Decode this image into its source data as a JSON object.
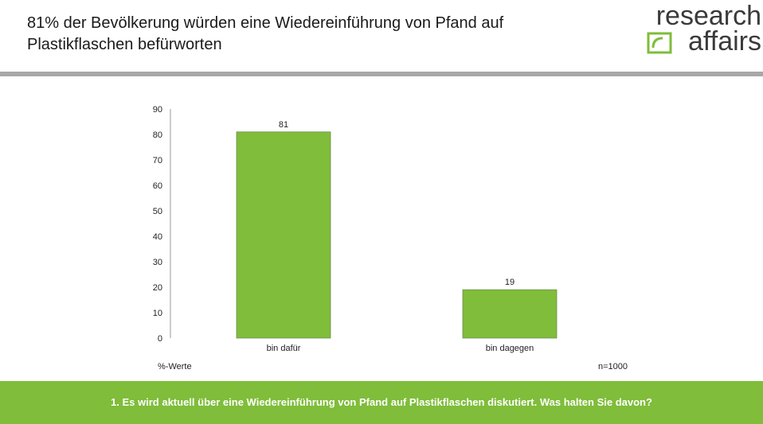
{
  "header": {
    "title": "81% der Bevölkerung würden eine Wiedereinführung von Pfand auf Plastikflaschen befürworten"
  },
  "logo": {
    "line1": "research",
    "line2": "affairs",
    "icon": "logo-square-icon",
    "color": "#7fbd3a"
  },
  "chart_data": {
    "type": "bar",
    "categories": [
      "bin dafür",
      "bin dagegen"
    ],
    "values": [
      81,
      19
    ],
    "data_labels": [
      "81",
      "19"
    ],
    "ylim": [
      0,
      90
    ],
    "yticks": [
      0,
      10,
      20,
      30,
      40,
      50,
      60,
      70,
      80,
      90
    ],
    "grid": false,
    "bar_color": "#7fbd3a",
    "unit_label": "%-Werte",
    "sample_size": "n=1000"
  },
  "footer": {
    "question": "1. Es wird aktuell über eine Wiedereinführung von Pfand auf Plastikflaschen diskutiert. Was halten Sie davon?",
    "background": "#7fbd3a"
  }
}
